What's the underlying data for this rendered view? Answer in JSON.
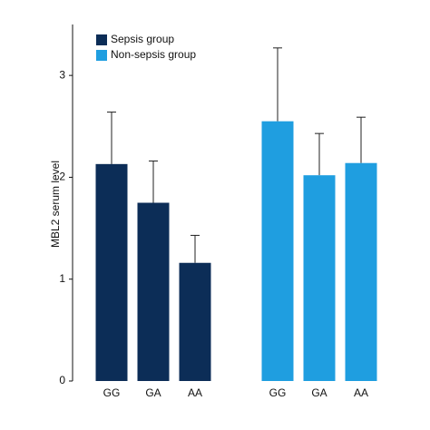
{
  "chart_data": {
    "type": "bar",
    "categories": [
      "GG",
      "GA",
      "AA",
      "GG",
      "GA",
      "AA"
    ],
    "series": [
      {
        "name": "Sepsis group",
        "color": "#0c2d57",
        "values": [
          2.13,
          1.75,
          1.16,
          null,
          null,
          null
        ],
        "errors": [
          0.51,
          0.41,
          0.27,
          null,
          null,
          null
        ]
      },
      {
        "name": "Non-sepsis group",
        "color": "#1f9ee0",
        "values": [
          null,
          null,
          null,
          2.55,
          2.02,
          2.14
        ],
        "errors": [
          null,
          null,
          null,
          0.72,
          0.41,
          0.45
        ]
      }
    ],
    "y_label": "MBL2 serum level",
    "ylim": [
      0,
      3.5
    ],
    "yticks": [
      0,
      1,
      2,
      3
    ],
    "legend": "upper-left"
  }
}
